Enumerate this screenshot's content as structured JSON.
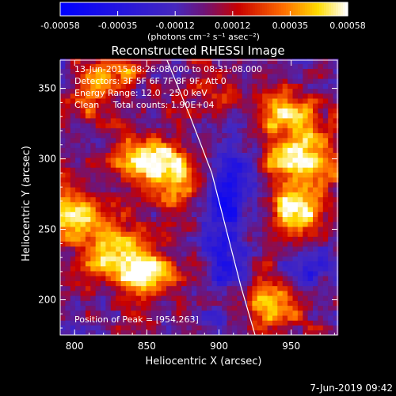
{
  "chart_data": {
    "type": "heatmap",
    "title": "Reconstructed RHESSI Image",
    "xlabel": "Heliocentric X (arcsec)",
    "ylabel": "Heliocentric Y (arcsec)",
    "xlim": [
      790,
      982
    ],
    "ylim": [
      175,
      370
    ],
    "xticks": [
      800,
      850,
      900,
      950
    ],
    "yticks": [
      200,
      250,
      300,
      350
    ],
    "colorbar": {
      "min": -0.00058,
      "max": 0.00058,
      "ticks": [
        "-0.00058",
        "-0.00035",
        "-0.00012",
        "0.00012",
        "0.00035",
        "0.00058"
      ],
      "units": "(photons cm⁻² s⁻¹ asec⁻²)"
    },
    "annotations": [
      "13-Jun-2015 08:26:08.000 to 08:31:08.000",
      "Detectors: 3F 5F 6F 7F 8F 9F, Att 0",
      "Energy Range: 12.0 - 25.0 keV",
      "Clean     Total counts: 1.90E+04"
    ],
    "peak_label": "Position of Peak = [954,263]",
    "peak": [
      954,
      263
    ],
    "limb_points": [
      [
        864,
        370
      ],
      [
        880,
        330
      ],
      [
        895,
        290
      ],
      [
        905,
        250
      ],
      [
        915,
        210
      ],
      [
        925,
        175
      ]
    ],
    "sources": [
      {
        "x": 800,
        "y": 262,
        "sx": 16,
        "sy": 12,
        "amp": 0.00055
      },
      {
        "x": 830,
        "y": 232,
        "sx": 18,
        "sy": 14,
        "amp": 0.0005
      },
      {
        "x": 850,
        "y": 218,
        "sx": 12,
        "sy": 10,
        "amp": 0.00045
      },
      {
        "x": 845,
        "y": 300,
        "sx": 14,
        "sy": 12,
        "amp": 0.00042
      },
      {
        "x": 865,
        "y": 296,
        "sx": 12,
        "sy": 10,
        "amp": 0.00048
      },
      {
        "x": 873,
        "y": 275,
        "sx": 8,
        "sy": 10,
        "amp": 0.00038
      },
      {
        "x": 812,
        "y": 347,
        "sx": 10,
        "sy": 12,
        "amp": 0.0004
      },
      {
        "x": 832,
        "y": 365,
        "sx": 12,
        "sy": 8,
        "amp": 0.00035
      },
      {
        "x": 895,
        "y": 350,
        "sx": 14,
        "sy": 10,
        "amp": 0.0002
      },
      {
        "x": 955,
        "y": 300,
        "sx": 20,
        "sy": 16,
        "amp": 0.00052
      },
      {
        "x": 948,
        "y": 333,
        "sx": 14,
        "sy": 10,
        "amp": 0.00045
      },
      {
        "x": 954,
        "y": 263,
        "sx": 12,
        "sy": 10,
        "amp": 0.0006
      },
      {
        "x": 940,
        "y": 198,
        "sx": 16,
        "sy": 12,
        "amp": 0.00045
      },
      {
        "x": 905,
        "y": 250,
        "sx": 10,
        "sy": 40,
        "amp": -0.00035
      },
      {
        "x": 915,
        "y": 290,
        "sx": 12,
        "sy": 15,
        "amp": -0.0003
      },
      {
        "x": 960,
        "y": 220,
        "sx": 12,
        "sy": 14,
        "amp": -0.00028
      }
    ]
  },
  "footer": {
    "timestamp": "7-Jun-2019 09:42"
  }
}
